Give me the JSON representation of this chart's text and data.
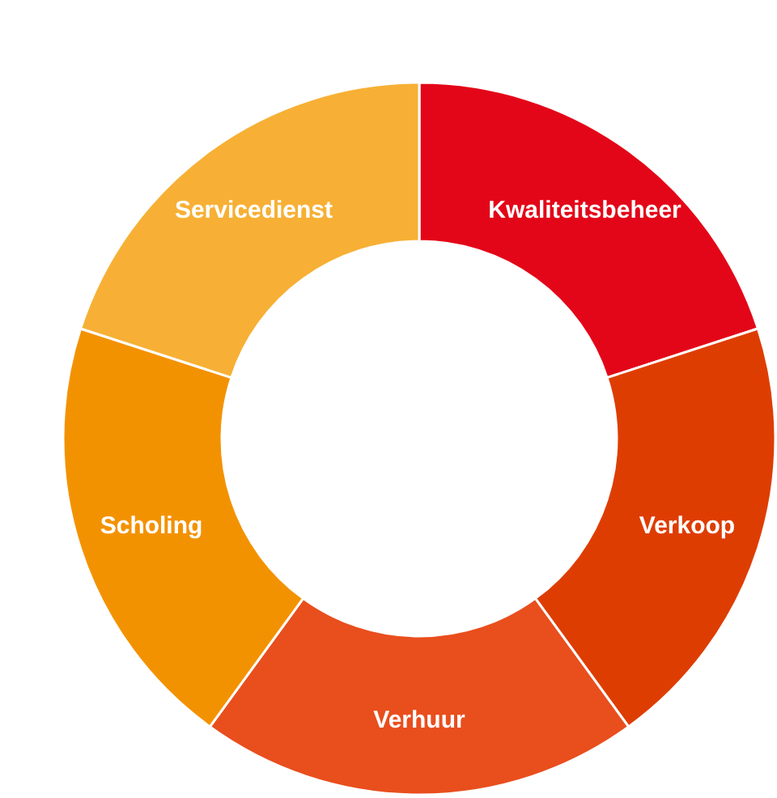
{
  "chart_data": {
    "type": "donut",
    "categories": [
      "Kwaliteitsbeheer",
      "Verkoop",
      "Verhuur",
      "Scholing",
      "Servicedienst"
    ],
    "values": [
      20,
      20,
      20,
      20,
      20
    ],
    "colors": [
      "#e30618",
      "#de3d02",
      "#e94e1d",
      "#f39200",
      "#f7b035"
    ],
    "legend": false
  }
}
